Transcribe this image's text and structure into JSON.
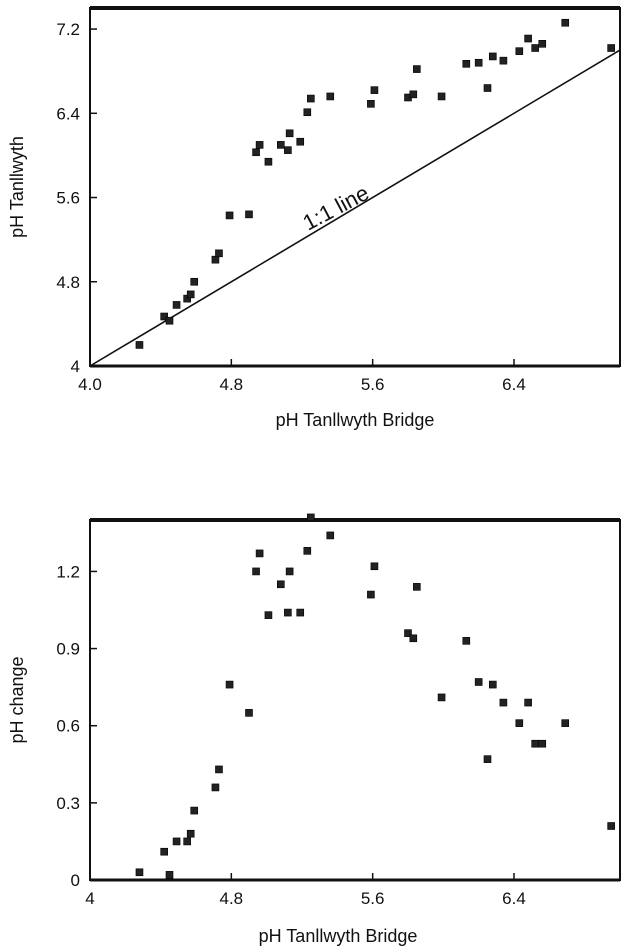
{
  "chart_data": [
    {
      "type": "scatter",
      "title": "",
      "xlabel": "pH Tanllwyth Bridge",
      "ylabel": "pH Tanllwyth",
      "xlim": [
        4.0,
        7.0
      ],
      "ylim": [
        4.0,
        7.4
      ],
      "x_tick_values": [
        4.0,
        4.8,
        5.6,
        6.4
      ],
      "x_tick_labels": [
        "4.0",
        "4.8",
        "5.6",
        "6.4"
      ],
      "y_tick_values": [
        4.0,
        4.8,
        5.6,
        6.4,
        7.2
      ],
      "y_tick_labels": [
        "4",
        "4.8",
        "5.6",
        "6.4",
        "7.2"
      ],
      "grid": false,
      "annotation": "1:1 line",
      "reference_line": [
        [
          4.0,
          4.0
        ],
        [
          7.0,
          7.0
        ]
      ],
      "x": [
        4.28,
        4.42,
        4.45,
        4.49,
        4.55,
        4.57,
        4.59,
        4.71,
        4.73,
        4.79,
        4.9,
        4.94,
        4.96,
        5.01,
        5.08,
        5.12,
        5.13,
        5.19,
        5.23,
        5.25,
        5.36,
        5.59,
        5.61,
        5.8,
        5.83,
        5.85,
        5.99,
        6.13,
        6.2,
        6.25,
        6.28,
        6.34,
        6.43,
        6.48,
        6.52,
        6.56,
        6.69,
        6.95
      ],
      "y": [
        4.2,
        4.47,
        4.43,
        4.58,
        4.64,
        4.68,
        4.8,
        5.01,
        5.07,
        5.43,
        5.44,
        6.03,
        6.1,
        5.94,
        6.1,
        6.05,
        6.21,
        6.13,
        6.41,
        6.54,
        6.56,
        6.49,
        6.62,
        6.55,
        6.58,
        6.82,
        6.56,
        6.87,
        6.88,
        6.64,
        6.94,
        6.9,
        6.99,
        7.11,
        7.02,
        7.06,
        7.26,
        7.02
      ]
    },
    {
      "type": "scatter",
      "title": "",
      "xlabel": "pH Tanllwyth Bridge",
      "ylabel": "pH change",
      "xlim": [
        4.0,
        7.0
      ],
      "ylim": [
        0,
        1.4
      ],
      "x_tick_values": [
        4.0,
        4.8,
        5.6,
        6.4
      ],
      "x_tick_labels": [
        "4",
        "4.8",
        "5.6",
        "6.4"
      ],
      "y_tick_values": [
        0,
        0.3,
        0.6,
        0.9,
        1.2
      ],
      "y_tick_labels": [
        "0",
        "0.3",
        "0.6",
        "0.9",
        "1.2"
      ],
      "grid": false,
      "x": [
        4.28,
        4.42,
        4.45,
        4.49,
        4.55,
        4.57,
        4.59,
        4.71,
        4.73,
        4.79,
        4.9,
        4.94,
        4.96,
        5.01,
        5.08,
        5.12,
        5.13,
        5.19,
        5.23,
        5.25,
        5.36,
        5.59,
        5.61,
        5.8,
        5.83,
        5.85,
        5.99,
        6.13,
        6.2,
        6.25,
        6.28,
        6.34,
        6.43,
        6.48,
        6.52,
        6.56,
        6.69,
        6.95
      ],
      "y": [
        0.03,
        0.11,
        0.02,
        0.15,
        0.15,
        0.18,
        0.27,
        0.36,
        0.43,
        0.76,
        0.65,
        1.2,
        1.27,
        1.03,
        1.15,
        1.04,
        1.2,
        1.04,
        1.28,
        1.41,
        1.34,
        1.11,
        1.22,
        0.96,
        0.94,
        1.14,
        0.71,
        0.93,
        0.77,
        0.47,
        0.76,
        0.69,
        0.61,
        0.69,
        0.53,
        0.53,
        0.61,
        0.21
      ]
    }
  ]
}
